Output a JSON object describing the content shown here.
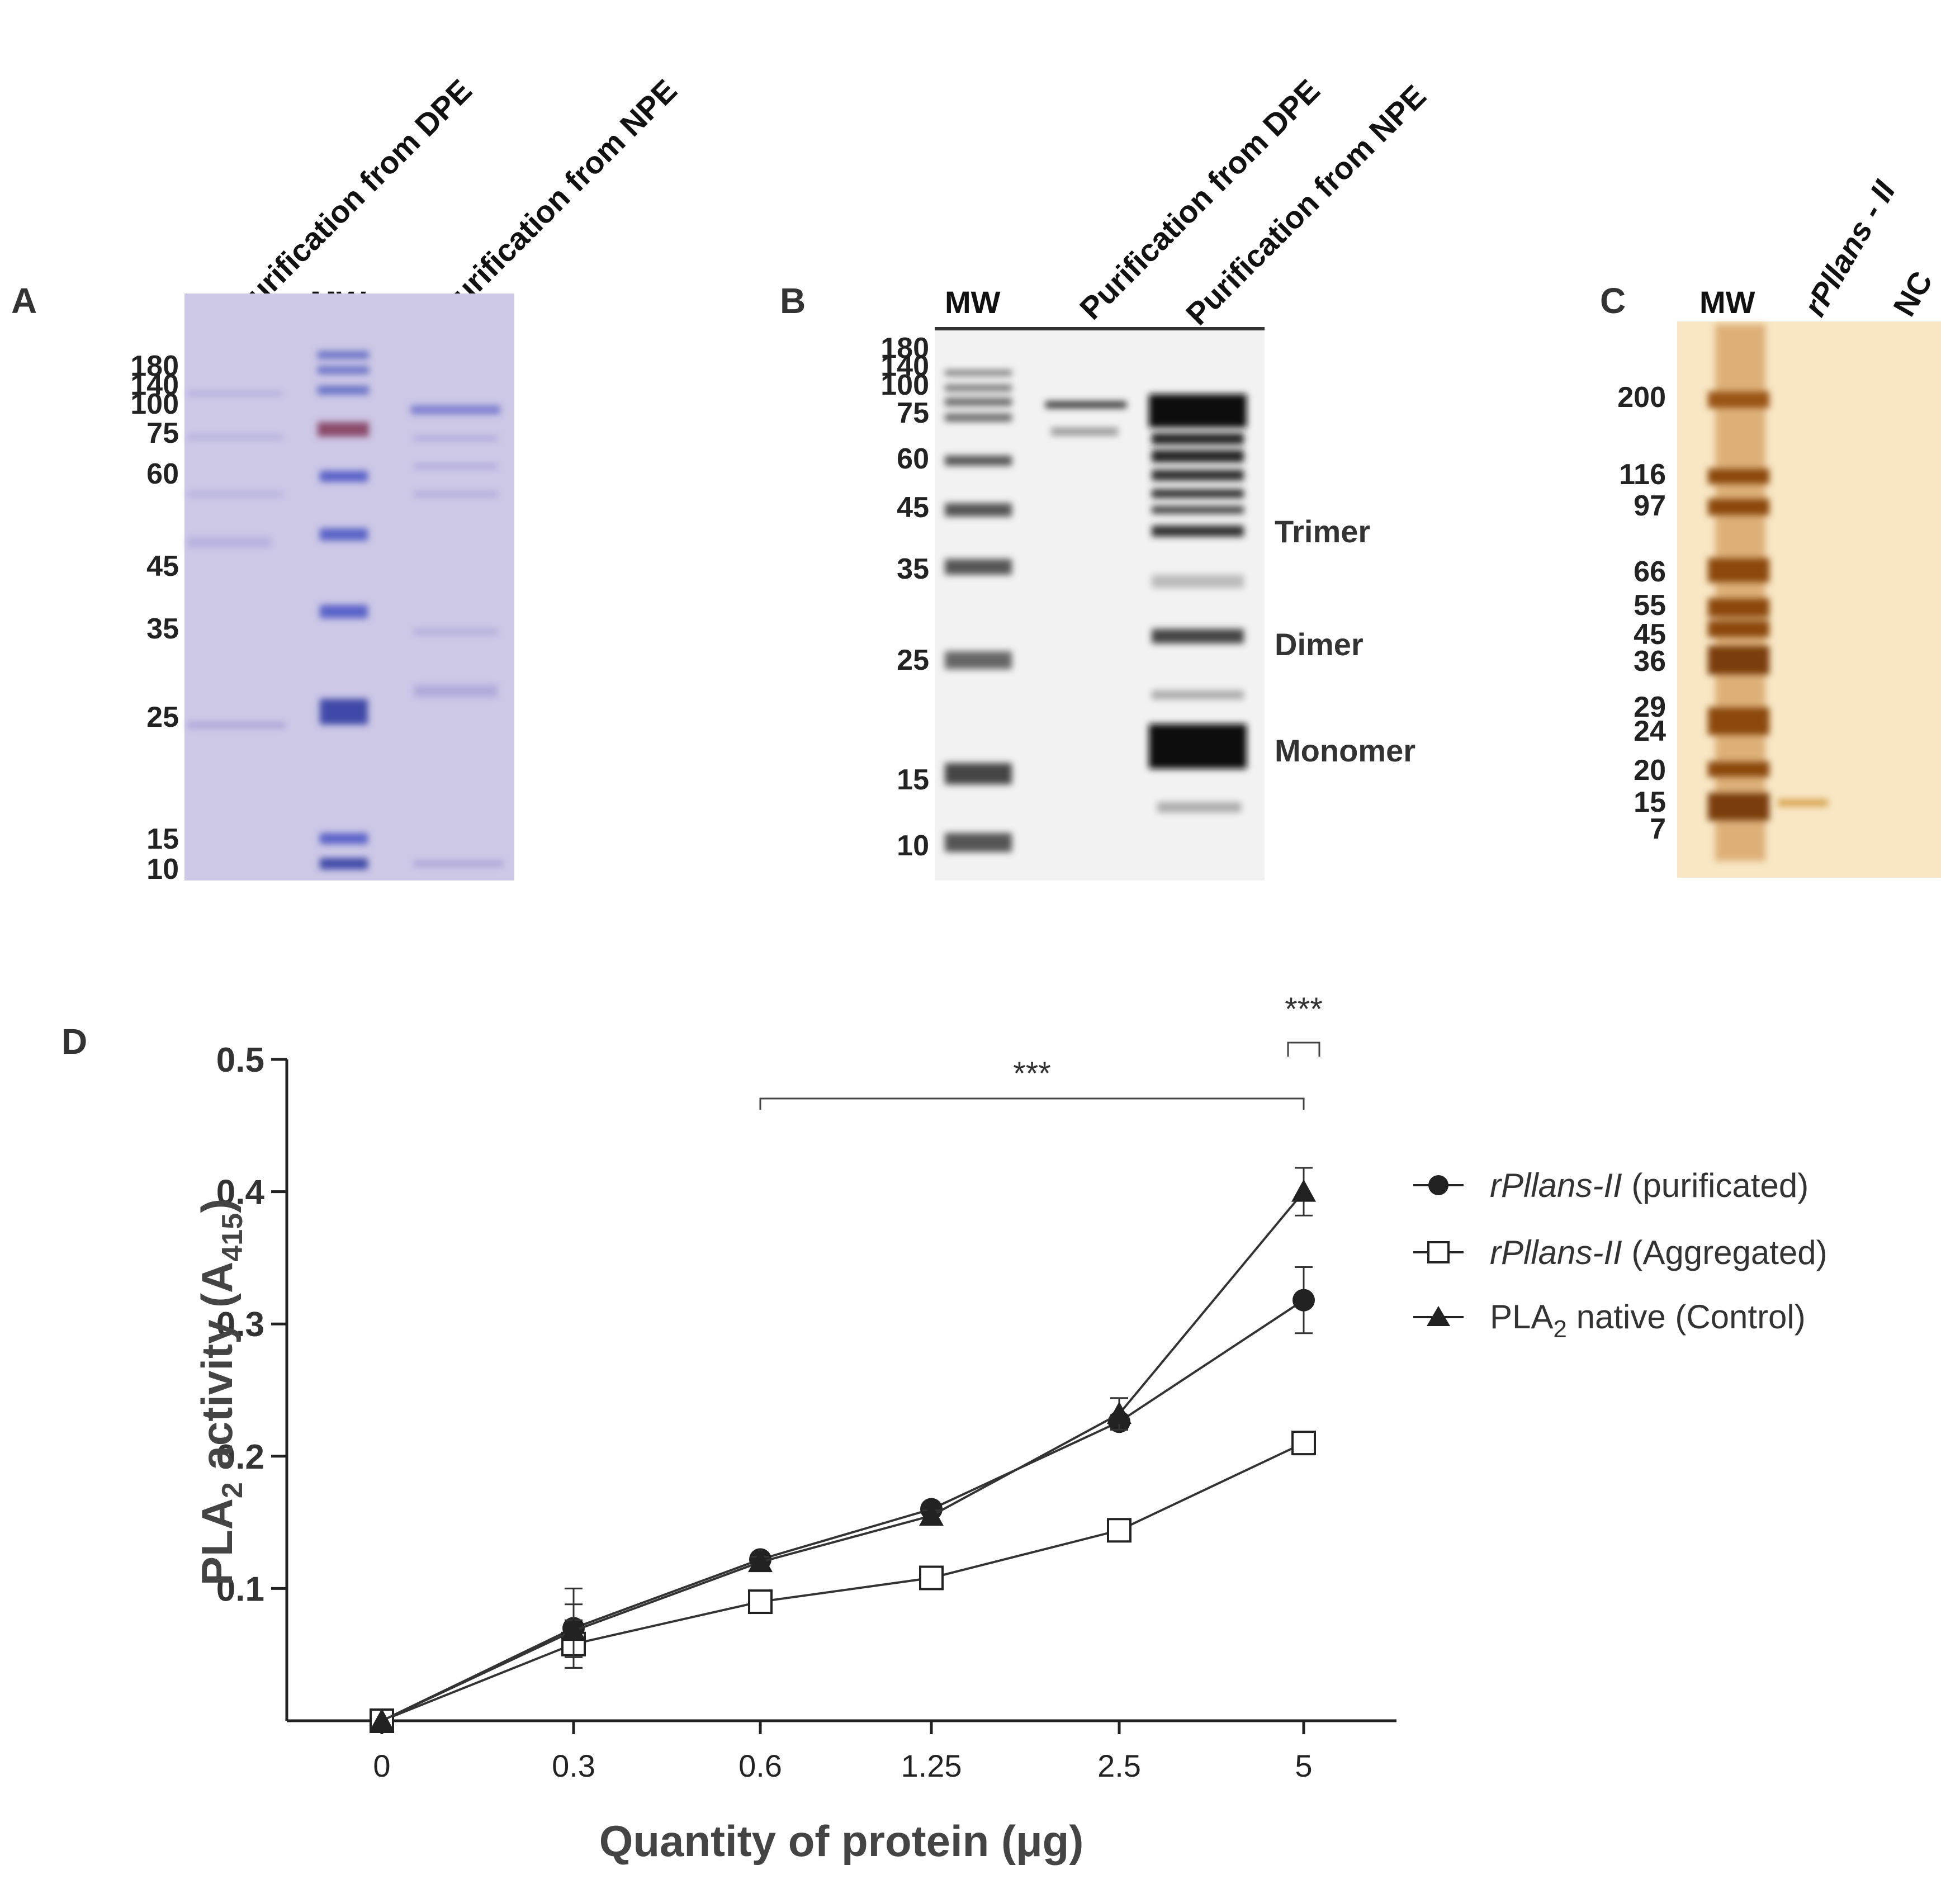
{
  "panels": {
    "A": {
      "label": "A",
      "lane_headers": [
        "Purification from DPE",
        "MW",
        "Purification from NPE"
      ],
      "mw_markers": [
        "180",
        "140",
        "100",
        "75",
        "60",
        "45",
        "35",
        "25",
        "15",
        "10"
      ],
      "colors": {
        "gel": "#cdc8e6",
        "band": "#5a63c8",
        "marker_top": "#8a4a6a"
      }
    },
    "B": {
      "label": "B",
      "lane_headers": [
        "MW",
        "Purification from DPE",
        "Purification from NPE"
      ],
      "mw_markers": [
        "180",
        "140",
        "100",
        "75",
        "60",
        "45",
        "35",
        "25",
        "15",
        "10"
      ],
      "oligomer_labels": [
        "Trimer",
        "Dimer",
        "Monomer"
      ],
      "colors": {
        "gel": "#f2f2f2",
        "band": "#111111"
      }
    },
    "C": {
      "label": "C",
      "lane_headers": [
        "MW",
        "rPllans - II",
        "NC"
      ],
      "mw_markers": [
        "200",
        "116",
        "97",
        "66",
        "55",
        "45",
        "36",
        "29",
        "24",
        "20",
        "15",
        "7"
      ],
      "colors": {
        "gel": "#f8e6c4",
        "band": "#8b4a10"
      }
    },
    "D": {
      "label": "D",
      "chart_data": {
        "type": "line",
        "title": "",
        "xlabel": "Quantity of protein (μg)",
        "ylabel": "PLA2 activity (A415)",
        "categories": [
          "0",
          "0.3",
          "0.6",
          "1.25",
          "2.5",
          "5"
        ],
        "ylim": [
          0,
          0.5
        ],
        "yticks": [
          "0.1",
          "0.2",
          "0.3",
          "0.4",
          "0.5"
        ],
        "series": [
          {
            "name": "rPllans-II (purificated)",
            "marker": "filled-circle",
            "values": [
              0.0,
              0.07,
              0.122,
              0.16,
              0.226,
              0.318
            ],
            "errors": [
              0,
              0.03,
              0.004,
              0.004,
              0.005,
              0.025
            ]
          },
          {
            "name": "rPllans-II (Aggregated)",
            "marker": "open-square",
            "values": [
              0.0,
              0.058,
              0.09,
              0.108,
              0.144,
              0.21
            ],
            "errors": [
              0,
              0.018,
              0.004,
              0.004,
              0.004,
              0.004
            ]
          },
          {
            "name": "PLA2 native (Control)",
            "marker": "filled-triangle",
            "values": [
              0.0,
              0.068,
              0.12,
              0.155,
              0.232,
              0.4
            ],
            "errors": [
              0,
              0.02,
              0.004,
              0.004,
              0.012,
              0.018
            ]
          }
        ],
        "legend": {
          "position": "right",
          "entries": [
            {
              "italic": "rPllans-II",
              "rest": " (purificated)"
            },
            {
              "italic": "rPllans-II",
              "rest": " (Aggregated)"
            },
            {
              "pre": "PLA",
              "sub": "2",
              "rest": " native (Control)"
            }
          ]
        },
        "ylabel_parts": {
          "pre": "PLA",
          "sub1": "2",
          "mid": " activity (A",
          "sub2": "415",
          "post": ")"
        },
        "significance": [
          {
            "label": "***",
            "from": "0.6",
            "to": "5"
          },
          {
            "label": "***",
            "at": "5"
          }
        ]
      }
    }
  }
}
